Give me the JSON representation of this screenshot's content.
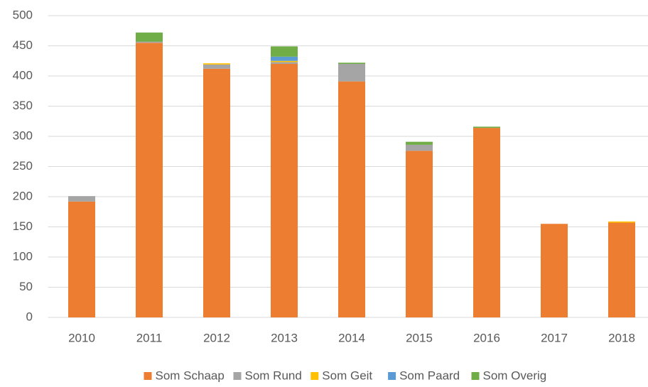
{
  "chart_data": {
    "type": "stacked_bar",
    "categories": [
      "2010",
      "2011",
      "2012",
      "2013",
      "2014",
      "2015",
      "2016",
      "2017",
      "2018"
    ],
    "series": [
      {
        "name": "Som Schaap",
        "color": "#ed7d31",
        "values": [
          192,
          455,
          412,
          420,
          391,
          276,
          314,
          155,
          157
        ]
      },
      {
        "name": "Som Rund",
        "color": "#a5a5a5",
        "values": [
          9,
          2,
          7,
          3,
          29,
          10,
          0,
          0,
          0
        ]
      },
      {
        "name": "Som Geit",
        "color": "#ffc000",
        "values": [
          0,
          0,
          2,
          2,
          0,
          0,
          0,
          0,
          2
        ]
      },
      {
        "name": "Som Paard",
        "color": "#5b9bd5",
        "values": [
          0,
          0,
          0,
          7,
          0,
          0,
          0,
          0,
          0
        ]
      },
      {
        "name": "Som Overig",
        "color": "#70ad47",
        "values": [
          0,
          15,
          0,
          17,
          2,
          5,
          2,
          0,
          0
        ]
      }
    ],
    "ylim": [
      0,
      500
    ],
    "yticks": [
      0,
      50,
      100,
      150,
      200,
      250,
      300,
      350,
      400,
      450,
      500
    ],
    "grid": true,
    "legend": "bottom"
  }
}
